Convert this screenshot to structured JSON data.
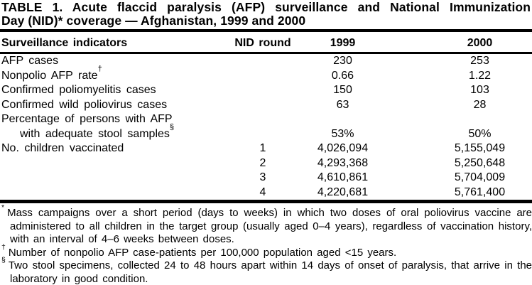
{
  "title": {
    "line1": "TABLE 1. Acute flaccid paralysis (AFP) surveillance and National Immunization",
    "line2": "Day (NID)* coverage — Afghanistan, 1999 and 2000"
  },
  "table": {
    "header": {
      "indicator": "Surveillance indicators",
      "nid": "NID round",
      "y1999": "1999",
      "y2000": "2000"
    },
    "rows": [
      {
        "label": "AFP cases",
        "marker": "",
        "nid": "",
        "y1999": "230",
        "y2000": "253"
      },
      {
        "label": "Nonpolio AFP rate",
        "marker": "†",
        "nid": "",
        "y1999": "0.66",
        "y2000": "1.22"
      },
      {
        "label": "Confirmed poliomyelitis cases",
        "marker": "",
        "nid": "",
        "y1999": "150",
        "y2000": "103"
      },
      {
        "label": "Confirmed wild poliovirus cases",
        "marker": "",
        "nid": "",
        "y1999": "63",
        "y2000": "28"
      },
      {
        "label": "Percentage of persons with AFP",
        "marker": "",
        "nid": "",
        "y1999": "",
        "y2000": ""
      },
      {
        "label": "with adequate stool samples",
        "marker": "§",
        "nid": "",
        "y1999": "53%",
        "y2000": "50%"
      },
      {
        "label": "No. children vaccinated",
        "marker": "",
        "nid": "1",
        "y1999": "4,026,094",
        "y2000": "5,155,049"
      },
      {
        "label": "",
        "marker": "",
        "nid": "2",
        "y1999": "4,293,368",
        "y2000": "5,250,648"
      },
      {
        "label": "",
        "marker": "",
        "nid": "3",
        "y1999": "4,610,861",
        "y2000": "5,704,009"
      },
      {
        "label": "",
        "marker": "",
        "nid": "4",
        "y1999": "4,220,681",
        "y2000": "5,761,400"
      }
    ]
  },
  "footnotes": [
    {
      "marker": "*",
      "text": "Mass campaigns over a short period (days to weeks) in which two doses of oral poliovirus vaccine are administered to all children in the target group (usually aged 0–4 years), regardless of vaccination history, with an interval of 4–6 weeks between doses."
    },
    {
      "marker": "†",
      "text": "Number of nonpolio AFP case-patients per 100,000 population aged <15 years."
    },
    {
      "marker": "§",
      "text": "Two stool specimens, collected 24 to 48 hours apart within 14 days of onset of paralysis, that arrive in the laboratory in good condition."
    }
  ],
  "colors": {
    "text": "#000000",
    "background": "#ffffff",
    "rule": "#000000"
  }
}
